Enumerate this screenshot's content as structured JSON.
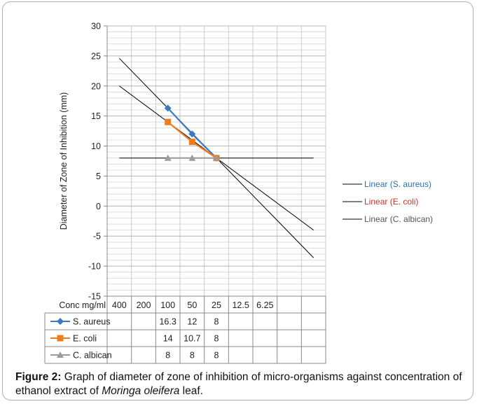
{
  "chart_data": {
    "type": "line",
    "ylabel": "Diameter of Zone of Inhibition  (mm)",
    "ylim": [
      -15,
      30
    ],
    "ytick_step": 5,
    "table_header_label": "Conc mg/ml",
    "categories": [
      "400",
      "200",
      "100",
      "50",
      "25",
      "12.5",
      "6.25",
      "",
      ""
    ],
    "series": [
      {
        "name": "S. aureus",
        "color": "#3b79c1",
        "marker": "diamond-icon",
        "values": [
          null,
          null,
          16.3,
          12,
          8,
          null,
          null,
          null,
          null
        ],
        "table_values": [
          "",
          "",
          "16.3",
          "12",
          "8",
          "",
          "",
          "",
          ""
        ]
      },
      {
        "name": "E. coli",
        "color": "#f07d1c",
        "marker": "square-icon",
        "values": [
          null,
          null,
          14,
          10.7,
          8,
          null,
          null,
          null,
          null
        ],
        "table_values": [
          "",
          "",
          "14",
          "10.7",
          "8",
          "",
          "",
          "",
          ""
        ]
      },
      {
        "name": "C. albican",
        "color": "#9c9c9c",
        "marker": "triangle-icon",
        "values": [
          null,
          null,
          8,
          8,
          8,
          null,
          null,
          null,
          null
        ],
        "table_values": [
          "",
          "",
          "8",
          "8",
          "8",
          "",
          "",
          "",
          ""
        ]
      }
    ],
    "trendlines": [
      {
        "label": "Linear (S. aureus)",
        "color": "#2f6fb6",
        "y_start": 24.6,
        "y_end": -8.6
      },
      {
        "label": "Linear (E. coli)",
        "color": "#c0392b",
        "y_start": 20.0,
        "y_end": -4.0
      },
      {
        "label": "Linear (C. albican)",
        "color": "#555555",
        "y_start": 8.0,
        "y_end": 8.0
      }
    ],
    "legend_position": "right",
    "grid": true
  },
  "caption": {
    "label": "Figure 2:",
    "text_before": " Graph of diameter of zone of inhibition of micro-organisms against concentration of ethanol extract of ",
    "italic": "Moringa oleifera",
    "text_after": " leaf."
  }
}
